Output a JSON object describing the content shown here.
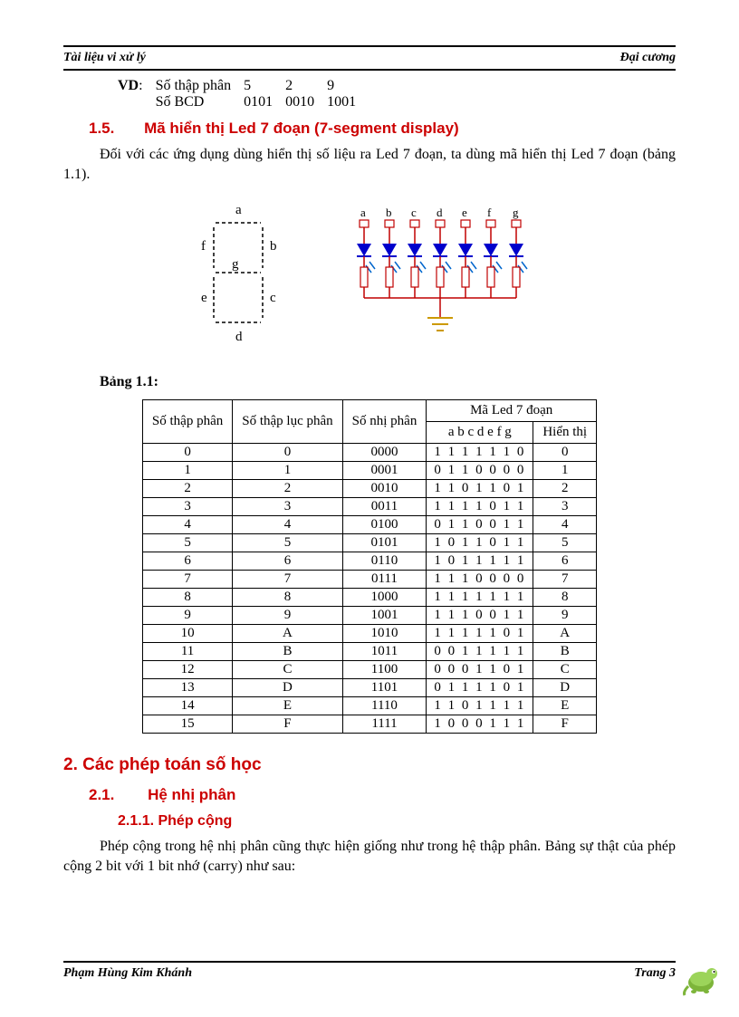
{
  "header": {
    "left": "Tài liệu vi xử lý",
    "right": "Đại cương"
  },
  "vd": {
    "prefix": "VD",
    "row1_label": "Số thập phân",
    "row1_vals": [
      "5",
      "2",
      "9"
    ],
    "row2_label": "Số BCD",
    "row2_vals": [
      "0101",
      "0010",
      "1001"
    ]
  },
  "sec15": {
    "num": "1.5.",
    "title": "Mã hiển thị Led 7 đoạn (7-segment display)"
  },
  "para1": "Đối với các ứng dụng dùng hiển thị số liệu ra Led 7 đoạn, ta dùng mã hiển thị Led 7 đoạn (bảng 1.1).",
  "seg7": {
    "labels": [
      "a",
      "b",
      "c",
      "d",
      "e",
      "f",
      "g"
    ],
    "stroke": "#000000",
    "circuit_labels": [
      "a",
      "b",
      "c",
      "d",
      "e",
      "f",
      "g"
    ],
    "circuit_colors": {
      "wire": "#c00000",
      "diode_fill": "#0000cc",
      "ground": "#cc9900"
    }
  },
  "table_caption": "Bảng 1.1:",
  "table": {
    "headers": {
      "c1": "Số thập phân",
      "c2": "Số thập lục phân",
      "c3": "Số nhị phân",
      "c4_group": "Mã Led 7 đoạn",
      "c4a": "a b c d e f g",
      "c4b": "Hiển thị"
    },
    "rows": [
      [
        "0",
        "0",
        "0000",
        "1 1 1 1 1 1 0",
        "0"
      ],
      [
        "1",
        "1",
        "0001",
        "0 1 1 0 0 0 0",
        "1"
      ],
      [
        "2",
        "2",
        "0010",
        "1 1 0 1 1 0 1",
        "2"
      ],
      [
        "3",
        "3",
        "0011",
        "1 1 1 1 0 1 1",
        "3"
      ],
      [
        "4",
        "4",
        "0100",
        "0 1 1 0 0 1 1",
        "4"
      ],
      [
        "5",
        "5",
        "0101",
        "1 0 1 1 0 1 1",
        "5"
      ],
      [
        "6",
        "6",
        "0110",
        "1 0 1 1 1 1 1",
        "6"
      ],
      [
        "7",
        "7",
        "0111",
        "1 1 1 0 0 0 0",
        "7"
      ],
      [
        "8",
        "8",
        "1000",
        "1 1 1 1 1 1 1",
        "8"
      ],
      [
        "9",
        "9",
        "1001",
        "1 1 1 0 0 1 1",
        "9"
      ],
      [
        "10",
        "A",
        "1010",
        "1 1 1 1 1 0 1",
        "A"
      ],
      [
        "11",
        "B",
        "1011",
        "0 0 1 1 1 1 1",
        "B"
      ],
      [
        "12",
        "C",
        "1100",
        "0 0 0 1 1 0 1",
        "C"
      ],
      [
        "13",
        "D",
        "1101",
        "0 1 1 1 1 0 1",
        "D"
      ],
      [
        "14",
        "E",
        "1110",
        "1 1 0 1 1 1 1",
        "E"
      ],
      [
        "15",
        "F",
        "1111",
        "1 0 0 0 1 1 1",
        "F"
      ]
    ]
  },
  "sec2": "2. Các phép toán số học",
  "sec21": {
    "num": "2.1.",
    "title": "Hệ nhị phân"
  },
  "sec211": "2.1.1. Phép cộng",
  "para2": "Phép cộng trong hệ nhị phân cũng thực hiện giống như trong hệ thập phân. Bảng sự thật của phép cộng 2 bit với 1 bit nhớ (carry) như sau:",
  "footer": {
    "left": "Phạm Hùng Kim Khánh",
    "right": "Trang 3"
  }
}
